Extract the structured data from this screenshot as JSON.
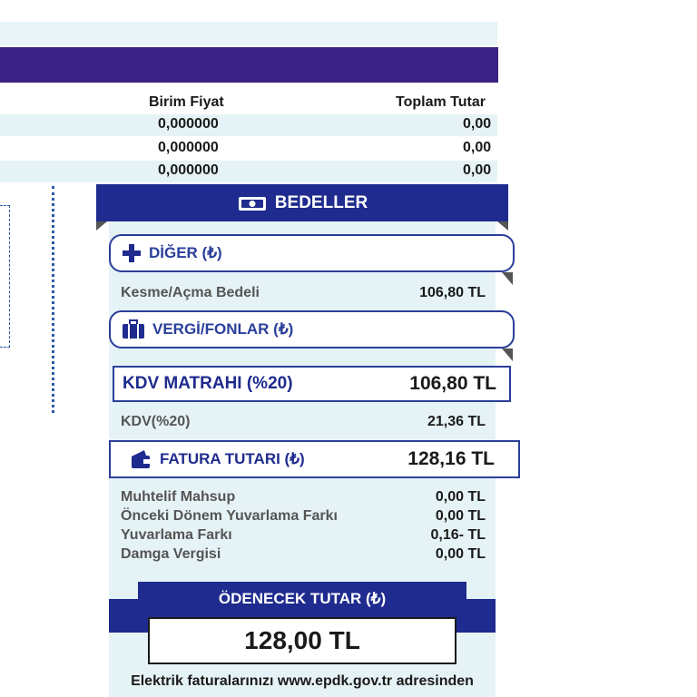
{
  "table": {
    "headers": {
      "unit_price": "Birim Fiyat",
      "total": "Toplam Tutar"
    },
    "rows": [
      {
        "unit_price": "0,000000",
        "total": "0,00"
      },
      {
        "unit_price": "0,000000",
        "total": "0,00"
      },
      {
        "unit_price": "0,000000",
        "total": "0,00"
      }
    ]
  },
  "charges": {
    "title": "BEDELLER",
    "other_section": "DİĞER (₺)",
    "cut_off_label": "Kesme/Açma Bedeli",
    "cut_off_value": "106,80 TL",
    "tax_section": "VERGİ/FONLAR (₺)",
    "kdv_base_label": "KDV MATRAHI (%20)",
    "kdv_base_value": "106,80 TL",
    "kdv_label": "KDV(%20)",
    "kdv_value": "21,36 TL",
    "invoice_total_label": "FATURA TUTARI (₺)",
    "invoice_total_value": "128,16 TL",
    "adjustments": [
      {
        "label": "Muhtelif Mahsup",
        "value": "0,00 TL"
      },
      {
        "label": "Önceki Dönem Yuvarlama Farkı",
        "value": "0,00 TL"
      },
      {
        "label": "Yuvarlama Farkı",
        "value": "0,16- TL"
      },
      {
        "label": "Damga Vergisi",
        "value": "0,00 TL"
      }
    ],
    "payable_label": "ÖDENECEK TUTAR (₺)",
    "payable_value": "128,00 TL"
  },
  "footer": {
    "text": "Elektrik faturalarınızı www.epdk.gov.tr adresinden"
  },
  "colors": {
    "purple": "#3a2384",
    "navy": "#1f2b8e",
    "panel": "#e6f3f6",
    "accent": "#2a3f9a"
  },
  "icons": {
    "title": "money-icon",
    "other": "plus-icon",
    "tax": "briefcase-icon",
    "invoice": "wallet-icon"
  }
}
